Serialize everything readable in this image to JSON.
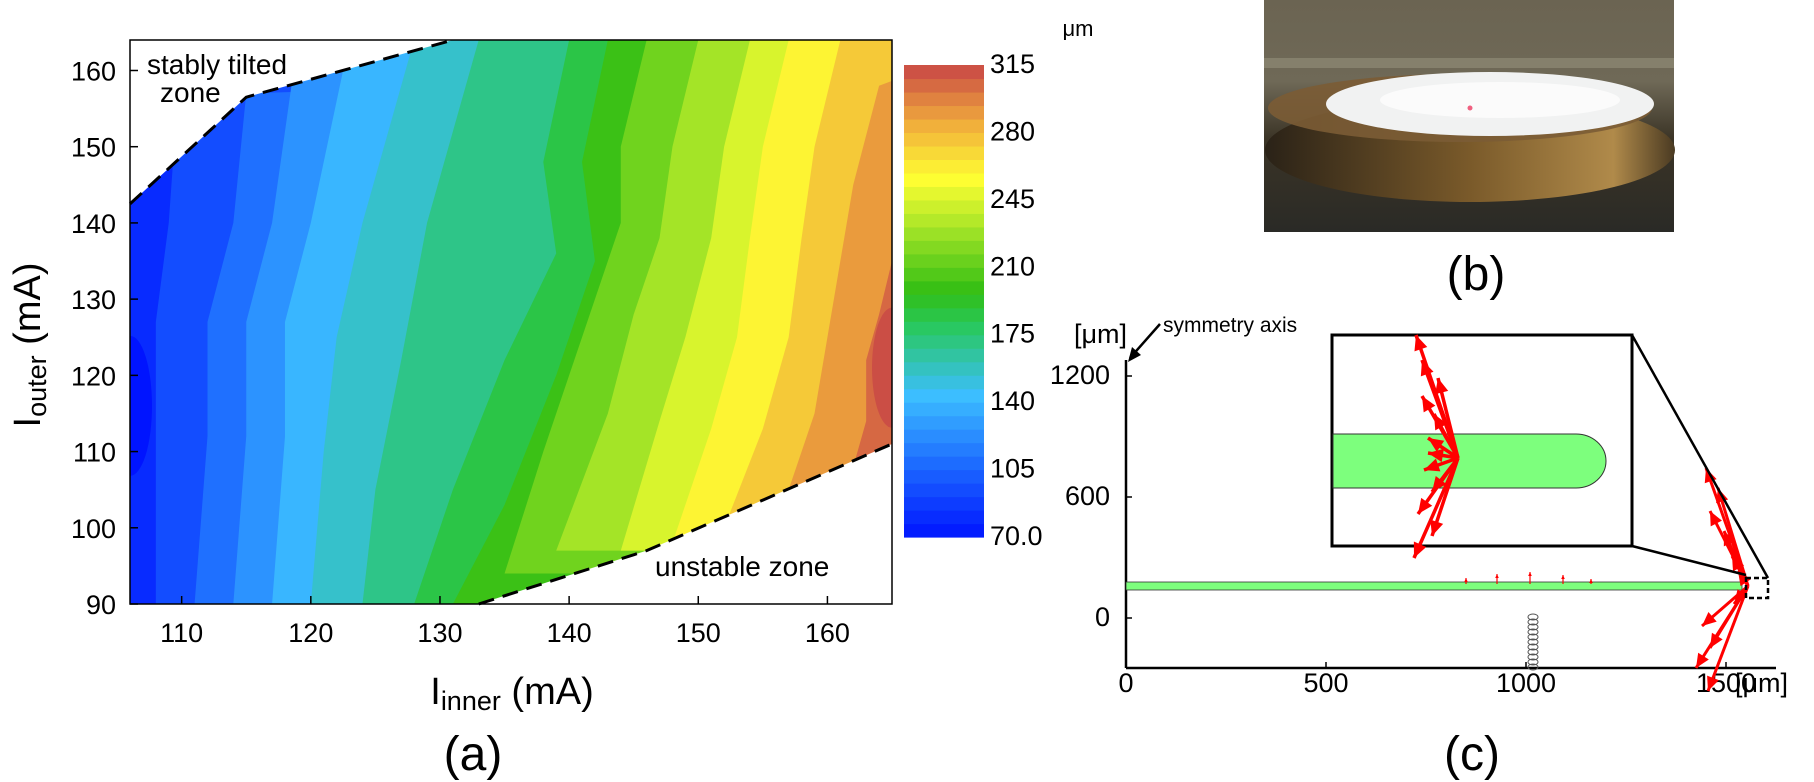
{
  "chart_data": [
    {
      "panel": "(a)",
      "type": "heatmap",
      "xlabel_main": "I",
      "xlabel_sub": "inner",
      "xlabel_unit": " (mA)",
      "ylabel_main": "I",
      "ylabel_sub": "outer",
      "ylabel_unit": " (mA)",
      "xlim": [
        106,
        165
      ],
      "ylim": [
        90,
        164
      ],
      "xticks": [
        110,
        120,
        130,
        140,
        150,
        160
      ],
      "yticks": [
        90,
        100,
        110,
        120,
        130,
        140,
        150,
        160
      ],
      "colorbar": {
        "unit": "μm",
        "min": 70,
        "max": 315,
        "ticks": [
          "315",
          "280",
          "245",
          "210",
          "175",
          "140",
          "105",
          "70.0"
        ],
        "levels": 35
      },
      "annotations": {
        "upper_left": [
          "stably tilted",
          "zone"
        ],
        "lower_right": "unstable zone"
      },
      "boundaries": {
        "stable": [
          [
            106,
            142.5
          ],
          [
            115,
            156.5
          ],
          [
            131,
            164
          ]
        ],
        "unstable": [
          [
            133,
            90
          ],
          [
            146,
            97
          ],
          [
            165,
            111
          ]
        ]
      },
      "contour_level_lines": [
        {
          "value": 80,
          "points": [
            [
              106,
              164
            ],
            [
              106,
              90
            ]
          ]
        },
        {
          "value": 95,
          "points": [
            [
              110,
              164
            ],
            [
              109,
              140
            ],
            [
              108,
              127
            ],
            [
              108,
              110
            ],
            [
              108,
              90
            ]
          ]
        },
        {
          "value": 110,
          "points": [
            [
              115,
              157
            ],
            [
              114,
              140
            ],
            [
              112,
              127
            ],
            [
              112,
              112
            ],
            [
              111,
              90
            ]
          ]
        },
        {
          "value": 125,
          "points": [
            [
              119,
              164
            ],
            [
              117,
              140
            ],
            [
              115,
              127
            ],
            [
              115,
              112
            ],
            [
              114,
              90
            ]
          ]
        },
        {
          "value": 140,
          "points": [
            [
              123,
              164
            ],
            [
              120,
              140
            ],
            [
              118,
              127
            ],
            [
              118,
              112
            ],
            [
              117,
              90
            ]
          ]
        },
        {
          "value": 155,
          "points": [
            [
              128,
              164
            ],
            [
              124,
              140
            ],
            [
              122,
              125
            ],
            [
              121,
              110
            ],
            [
              120,
              90
            ]
          ]
        },
        {
          "value": 170,
          "points": [
            [
              133,
              164
            ],
            [
              129,
              140
            ],
            [
              127,
              122
            ],
            [
              125,
              105
            ],
            [
              124,
              90
            ]
          ]
        },
        {
          "value": 185,
          "points": [
            [
              140,
              164
            ],
            [
              138,
              148
            ],
            [
              139,
              136
            ],
            [
              135,
              122
            ],
            [
              131,
              105
            ],
            [
              128,
              90
            ]
          ]
        },
        {
          "value": 200,
          "points": [
            [
              143,
              164
            ],
            [
              141,
              148
            ],
            [
              142,
              135
            ],
            [
              139,
              120
            ],
            [
              135,
              103
            ],
            [
              131,
              90
            ]
          ]
        },
        {
          "value": 215,
          "points": [
            [
              146,
              164
            ],
            [
              144,
              150
            ],
            [
              144,
              140
            ],
            [
              141,
              125
            ],
            [
              138,
              110
            ],
            [
              135,
              94
            ]
          ]
        },
        {
          "value": 230,
          "points": [
            [
              150,
              164
            ],
            [
              148,
              150
            ],
            [
              147,
              138
            ],
            [
              145,
              128
            ],
            [
              143,
              115
            ],
            [
              139,
              97
            ]
          ]
        },
        {
          "value": 245,
          "points": [
            [
              154,
              164
            ],
            [
              152,
              150
            ],
            [
              151,
              138
            ],
            [
              149,
              125
            ],
            [
              147,
              114
            ],
            [
              144,
              97
            ]
          ]
        },
        {
          "value": 260,
          "points": [
            [
              157,
              164
            ],
            [
              155,
              150
            ],
            [
              154,
              138
            ],
            [
              153,
              125
            ],
            [
              151,
              113
            ],
            [
              148,
              98
            ]
          ]
        },
        {
          "value": 275,
          "points": [
            [
              161,
              164
            ],
            [
              159,
              150
            ],
            [
              158,
              138
            ],
            [
              157,
              125
            ],
            [
              155,
              113
            ],
            [
              152,
              100
            ]
          ]
        },
        {
          "value": 290,
          "points": [
            [
              164,
              158
            ],
            [
              162,
              145
            ],
            [
              161,
              135
            ],
            [
              160,
              125
            ],
            [
              159,
              115
            ],
            [
              157,
              105
            ]
          ]
        },
        {
          "value": 305,
          "points": [
            [
              165,
              135
            ],
            [
              164,
              128
            ],
            [
              163,
              122
            ],
            [
              163,
              114
            ],
            [
              162,
              108
            ]
          ]
        }
      ],
      "minimum_region": {
        "value": 70,
        "center": [
          106,
          116
        ]
      },
      "maximum_region": {
        "value": 305,
        "center": [
          165,
          121
        ]
      }
    },
    {
      "panel": "(b)",
      "type": "photo"
    },
    {
      "panel": "(c)",
      "type": "diagram",
      "unit_label": "[μm]",
      "x_unit_label": "[μm]",
      "xlim": [
        0,
        1500
      ],
      "ylim": [
        0,
        1200
      ],
      "xticks": [
        0,
        500,
        1000,
        1500
      ],
      "yticks": [
        0,
        600,
        1200
      ],
      "symmetry_label": "symmetry axis"
    }
  ],
  "colors": {
    "boundary": "#000000",
    "plate": "#7dff7d",
    "arrows": "#ff0000"
  }
}
